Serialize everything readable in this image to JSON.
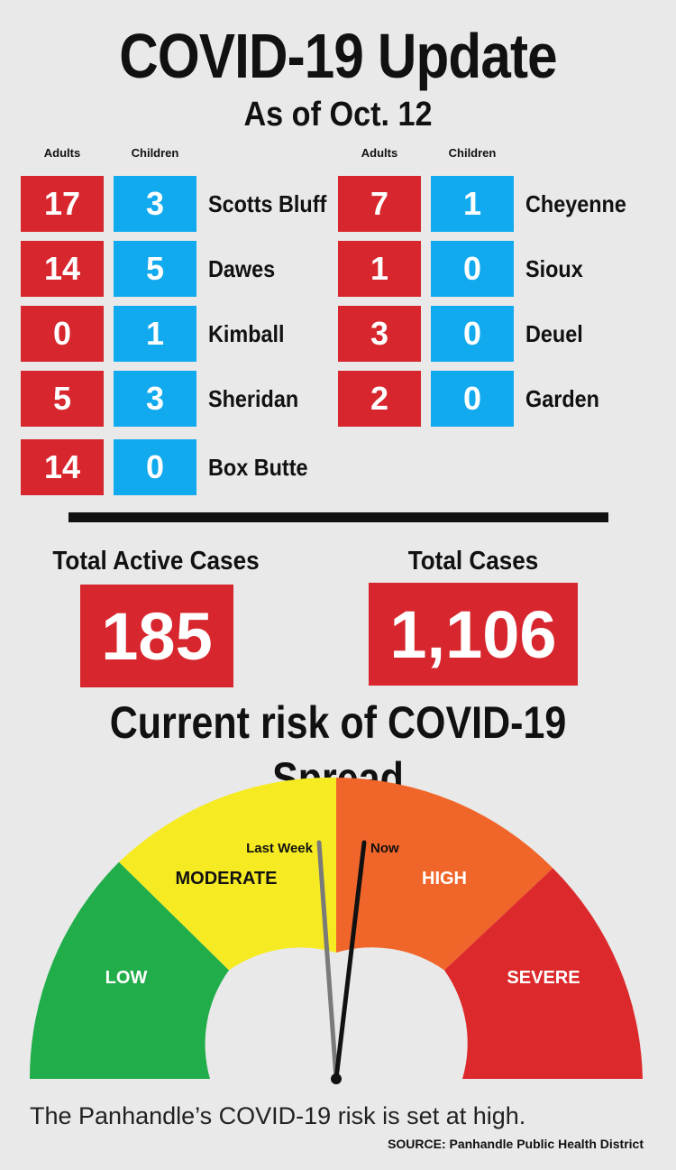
{
  "header": {
    "title": "COVID-19 Update",
    "subtitle": "As of Oct. 12"
  },
  "columns": {
    "adults": "Adults",
    "children": "Children"
  },
  "counties_left": [
    {
      "adults": "17",
      "children": "3",
      "name": "Scotts Bluff"
    },
    {
      "adults": "14",
      "children": "5",
      "name": "Dawes"
    },
    {
      "adults": "0",
      "children": "1",
      "name": "Kimball"
    },
    {
      "adults": "5",
      "children": "3",
      "name": "Sheridan"
    },
    {
      "adults": "14",
      "children": "0",
      "name": "Box Butte"
    }
  ],
  "counties_right": [
    {
      "adults": "7",
      "children": "1",
      "name": "Cheyenne"
    },
    {
      "adults": "1",
      "children": "0",
      "name": "Sioux"
    },
    {
      "adults": "3",
      "children": "0",
      "name": "Deuel"
    },
    {
      "adults": "2",
      "children": "0",
      "name": "Garden"
    }
  ],
  "totals": {
    "active_label": "Total Active Cases",
    "active_value": "185",
    "total_label": "Total Cases",
    "total_value": "1,106"
  },
  "risk": {
    "title": "Current risk of COVID-19 Spread",
    "levels": [
      {
        "label": "LOW",
        "color": "#21ad4a"
      },
      {
        "label": "MODERATE",
        "color": "#f6eb22"
      },
      {
        "label": "HIGH",
        "color": "#f0662a"
      },
      {
        "label": "SEVERE",
        "color": "#dc2a2c"
      }
    ],
    "last_week_label": "Last Week",
    "now_label": "Now",
    "current_level": "HIGH"
  },
  "caption": "The Panhandle’s COVID-19 risk is set at high.",
  "source": "SOURCE: Panhandle Public Health District",
  "colors": {
    "adults_box": "#d7262d",
    "children_box": "#12aaee",
    "background": "#e9e9e9"
  }
}
